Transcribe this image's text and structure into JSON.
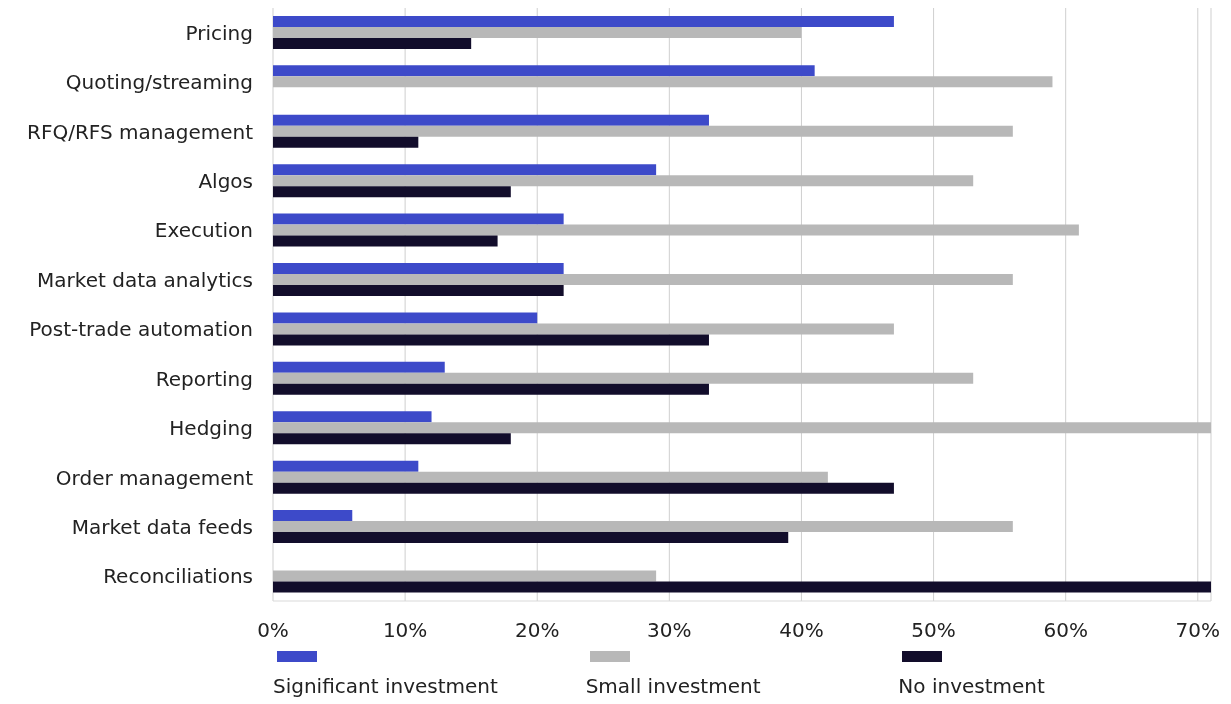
{
  "chart_data": {
    "type": "bar",
    "orientation": "horizontal",
    "categories": [
      "Pricing",
      "Quoting/streaming",
      "RFQ/RFS management",
      "Algos",
      "Execution",
      "Market data analytics",
      "Post-trade automation",
      "Reporting",
      "Hedging",
      "Order management",
      "Market data feeds",
      "Reconciliations"
    ],
    "series": [
      {
        "name": "Significant investment",
        "color": "#3d4ac9",
        "values": [
          47,
          41,
          33,
          29,
          22,
          22,
          20,
          13,
          12,
          11,
          6,
          null
        ]
      },
      {
        "name": "Small investment",
        "color": "#b8b8b8",
        "values": [
          40,
          59,
          56,
          53,
          61,
          56,
          47,
          53,
          71,
          42,
          56,
          29
        ]
      },
      {
        "name": "No investment",
        "color": "#120d2b",
        "values": [
          15,
          null,
          11,
          18,
          17,
          22,
          33,
          33,
          18,
          47,
          39,
          71
        ]
      }
    ],
    "xlim": [
      0,
      71
    ],
    "xticks": [
      {
        "value": 0,
        "label": "0%"
      },
      {
        "value": 10,
        "label": "10%"
      },
      {
        "value": 20,
        "label": "20%"
      },
      {
        "value": 30,
        "label": "30%"
      },
      {
        "value": 40,
        "label": "40%"
      },
      {
        "value": 50,
        "label": "50%"
      },
      {
        "value": 60,
        "label": "60%"
      },
      {
        "value": 70,
        "label": "70%"
      }
    ],
    "grid": "x",
    "legend": "bottom"
  }
}
